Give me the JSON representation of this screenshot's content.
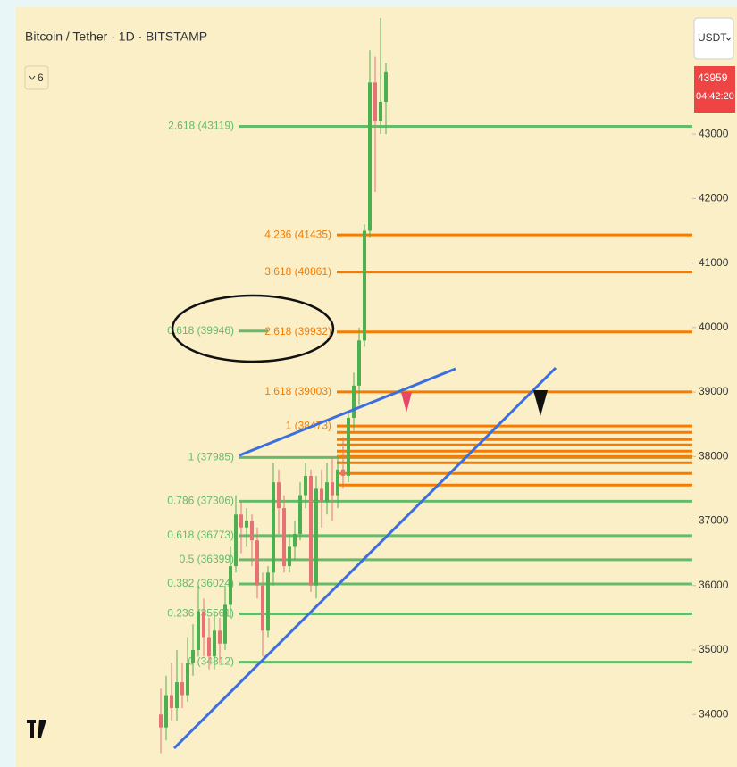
{
  "chart_data": {
    "type": "candlestick",
    "title": "Bitcoin / Tether · 1D · BITSTAMP",
    "indicator_count": "6",
    "currency_button": "USDT",
    "last_price": "43959",
    "countdown": "04:42:20",
    "ylim": [
      33380,
      44940
    ],
    "yticks": [
      34000,
      35000,
      36000,
      37000,
      38000,
      39000,
      40000,
      41000,
      42000,
      43000
    ],
    "up_color": "#4caf50",
    "down_color": "#e57373",
    "open": [
      34000,
      33800,
      34300,
      34100,
      34500,
      34300,
      34800,
      35000,
      35600,
      35200,
      34900,
      35300,
      35100,
      35700,
      36300,
      37100,
      36900,
      37000,
      36700,
      36000,
      35300,
      36200,
      37600,
      37200,
      36300,
      36600,
      36800,
      37400,
      37700,
      36000,
      37500,
      37300,
      37600,
      37400,
      37800,
      37700,
      38600,
      39100,
      39800,
      41500,
      43800,
      43200,
      43500
    ],
    "high": [
      34400,
      34600,
      34800,
      35000,
      34800,
      35200,
      35400,
      36000,
      35800,
      35500,
      35600,
      35500,
      36000,
      36600,
      37400,
      37300,
      37200,
      37100,
      36900,
      36200,
      36300,
      37900,
      37800,
      37400,
      36800,
      37000,
      37600,
      37900,
      37800,
      37700,
      37800,
      37900,
      38000,
      38000,
      38300,
      38700,
      39300,
      40000,
      41600,
      44300,
      44200,
      44800,
      44100
    ],
    "low": [
      33400,
      33600,
      33900,
      33900,
      34100,
      34200,
      34600,
      34900,
      34900,
      34700,
      34700,
      34800,
      35000,
      35500,
      36200,
      36500,
      36600,
      36300,
      35800,
      34900,
      35200,
      36000,
      36800,
      36200,
      36200,
      36400,
      36700,
      37200,
      35900,
      35800,
      36900,
      37100,
      37000,
      37200,
      37500,
      37600,
      38400,
      38800,
      39700,
      41400,
      42100,
      43000,
      43000
    ],
    "close": [
      33800,
      34300,
      34100,
      34500,
      34300,
      34800,
      35000,
      35600,
      35200,
      34900,
      35300,
      35100,
      35700,
      36300,
      37100,
      36900,
      37000,
      36700,
      36000,
      35300,
      36200,
      37600,
      37200,
      36300,
      36600,
      36800,
      37400,
      37700,
      36000,
      37500,
      37300,
      37600,
      37400,
      37800,
      37700,
      38600,
      39100,
      39800,
      41500,
      43800,
      43200,
      43500,
      43959
    ],
    "green_color": "#66bb6a",
    "orange_color": "#f57c00",
    "green_levels": [
      {
        "label": "2.618 (43119)",
        "value": 43119
      },
      {
        "label": "1 (37985)",
        "value": 37985
      },
      {
        "label": "0.786 (37306)",
        "value": 37306
      },
      {
        "label": "0.618 (36773)",
        "value": 36773
      },
      {
        "label": "0.5 (36399)",
        "value": 36399
      },
      {
        "label": "0.382 (36024)",
        "value": 36024
      },
      {
        "label": "0.236 (35561)",
        "value": 35561
      },
      {
        "label": "0 (34812)",
        "value": 34812
      }
    ],
    "upper_green_levels": [
      {
        "label": "0.618 (39946)",
        "value": 39946
      }
    ],
    "orange_levels": [
      {
        "label": "4.236 (41435)",
        "value": 41435
      },
      {
        "label": "3.618 (40861)",
        "value": 40861
      },
      {
        "label": "2.618 (39932)",
        "value": 39932
      },
      {
        "label": "1.618 (39003)",
        "value": 39003
      },
      {
        "label": "1 (38473)",
        "value": 38473
      },
      {
        "value": 38374
      },
      {
        "value": 38263
      },
      {
        "value": 38180
      },
      {
        "value": 38083
      },
      {
        "value": 38000
      },
      {
        "value": 37903
      },
      {
        "value": 37737
      },
      {
        "value": 37557
      }
    ]
  }
}
